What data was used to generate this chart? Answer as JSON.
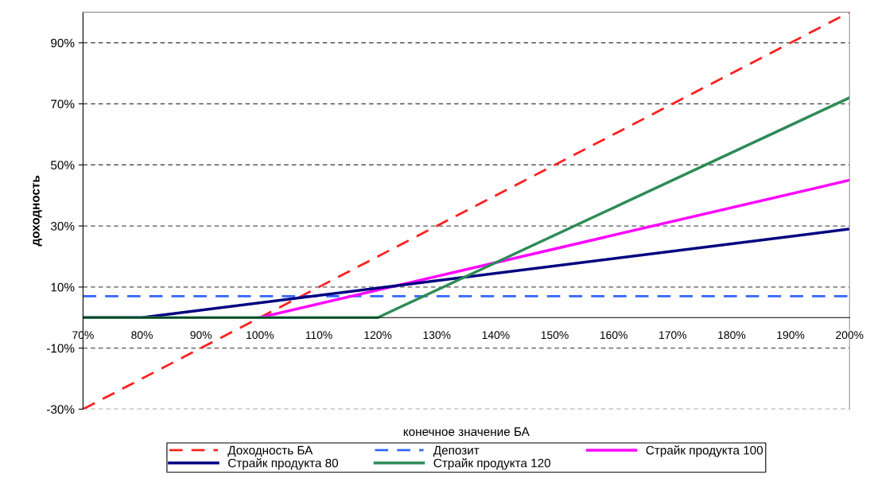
{
  "chart_data": {
    "type": "line",
    "xlabel": "конечное значение БА",
    "ylabel": "доходность",
    "xlim": [
      70,
      200
    ],
    "xticks": [
      {
        "value": 70,
        "label": "70%"
      },
      {
        "value": 80,
        "label": "80%"
      },
      {
        "value": 90,
        "label": "90%"
      },
      {
        "value": 100,
        "label": "100%"
      },
      {
        "value": 110,
        "label": "110%"
      },
      {
        "value": 120,
        "label": "120%"
      },
      {
        "value": 130,
        "label": "130%"
      },
      {
        "value": 140,
        "label": "140%"
      },
      {
        "value": 150,
        "label": "150%"
      },
      {
        "value": 160,
        "label": "160%"
      },
      {
        "value": 170,
        "label": "170%"
      },
      {
        "value": 180,
        "label": "180%"
      },
      {
        "value": 190,
        "label": "190%"
      },
      {
        "value": 200,
        "label": "200%"
      }
    ],
    "ylim": [
      -30,
      100
    ],
    "yticks": [
      {
        "value": -30,
        "label": "-30%"
      },
      {
        "value": -10,
        "label": "-10%"
      },
      {
        "value": 10,
        "label": "10%"
      },
      {
        "value": 30,
        "label": "30%"
      },
      {
        "value": 50,
        "label": "50%"
      },
      {
        "value": 70,
        "label": "70%"
      },
      {
        "value": 90,
        "label": "90%"
      }
    ],
    "grid": "y",
    "legend": "bottom",
    "marker": "none",
    "series": [
      {
        "name": "Доходность БА",
        "color": "#ff2020",
        "line_style": "dashed",
        "x": [
          70,
          200
        ],
        "values": [
          -30,
          100
        ]
      },
      {
        "name": "Депозит",
        "color": "#3366ff",
        "line_style": "dashed",
        "x": [
          70,
          200
        ],
        "values": [
          7,
          7
        ]
      },
      {
        "name": "Страйк продукта 100",
        "color": "#ff00ff",
        "line_style": "solid",
        "x": [
          100,
          200
        ],
        "values": [
          0,
          45
        ]
      },
      {
        "name": "Страйк продукта 80",
        "color": "#000080",
        "line_style": "solid",
        "x": [
          70,
          80,
          200
        ],
        "values": [
          0,
          0,
          29
        ]
      },
      {
        "name": "Страйк продукта 120",
        "color": "#2e8b57",
        "line_style": "solid",
        "x": [
          70,
          120,
          200
        ],
        "values": [
          0,
          0,
          72
        ]
      }
    ]
  }
}
